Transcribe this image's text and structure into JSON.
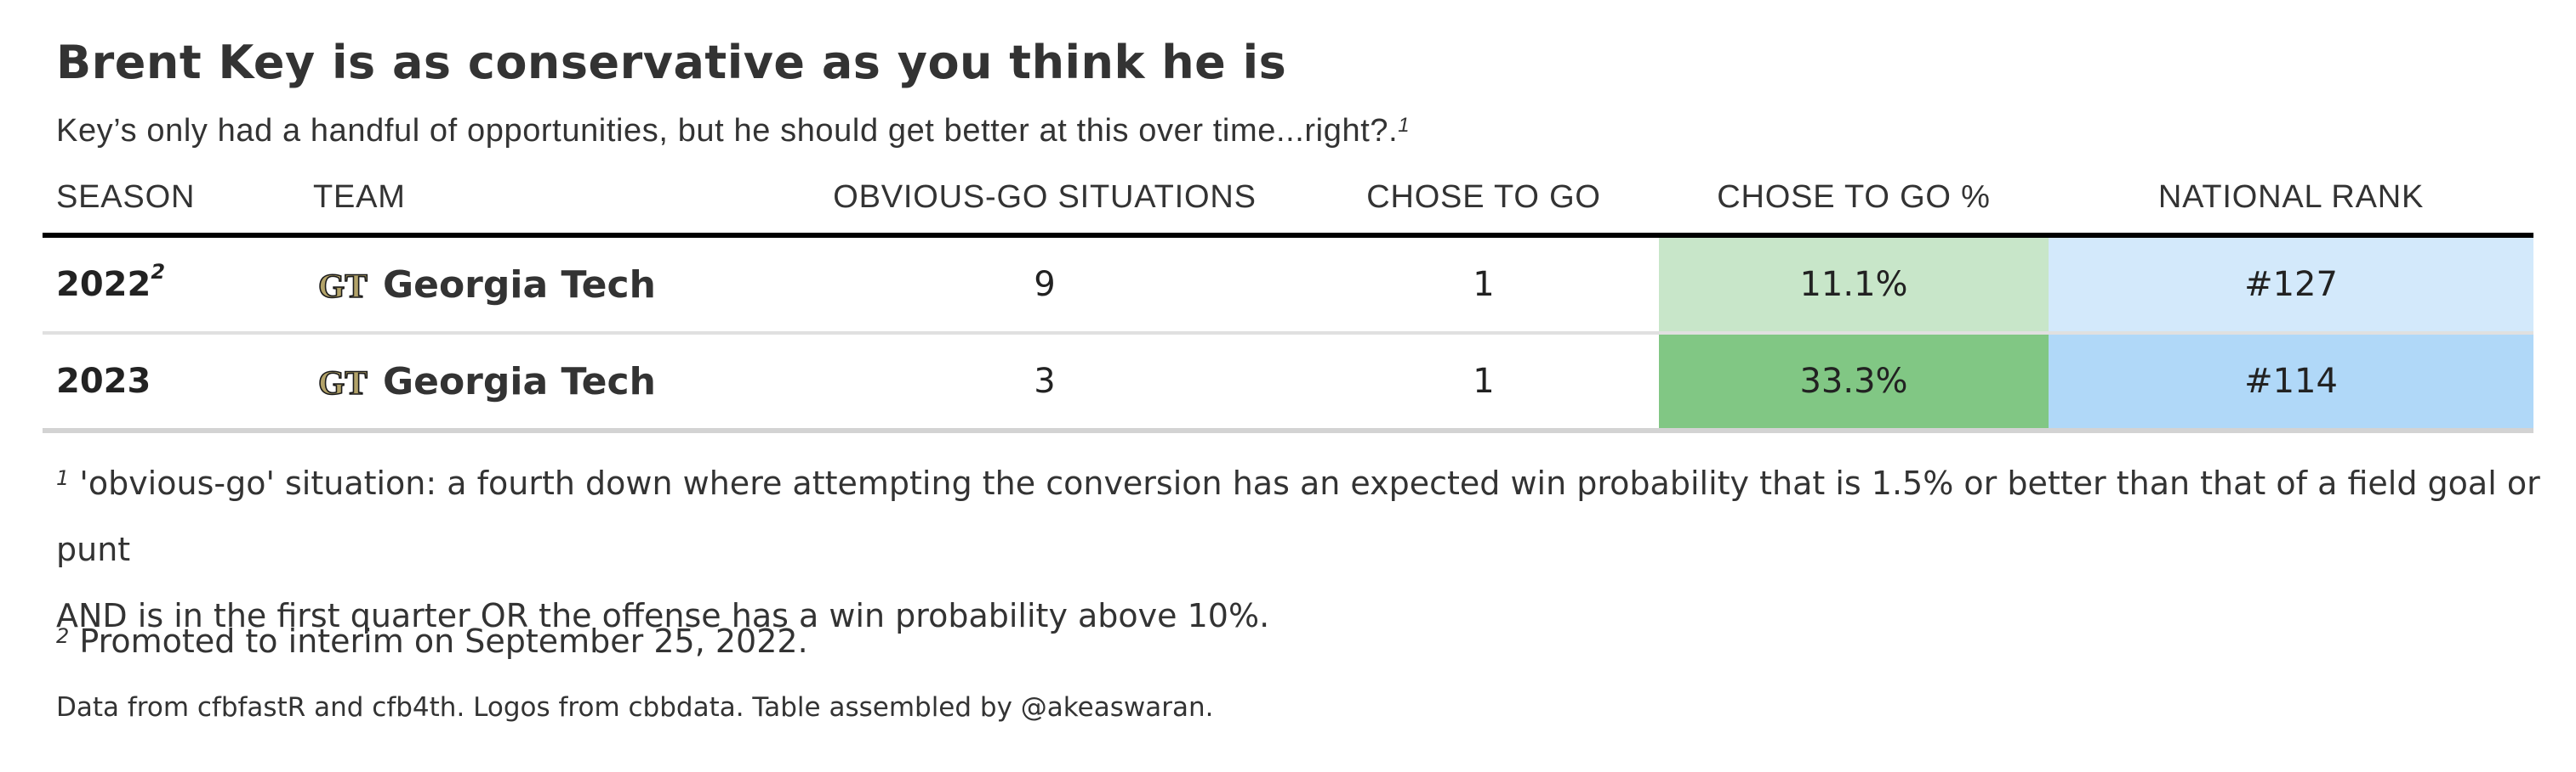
{
  "header": {
    "title": "Brent Key is as conservative as you think he is",
    "subtitle": "Key’s only had a handful of opportunities, but he should get better at this over time...right?.",
    "subtitle_note": "1"
  },
  "columns": {
    "season": "SEASON",
    "team": "TEAM",
    "obvious": "OBVIOUS-GO SITUATIONS",
    "chose": "CHOSE TO GO",
    "pct": "CHOSE TO GO %",
    "rank": "NATIONAL RANK"
  },
  "rows": [
    {
      "season": "2022",
      "season_note": "2",
      "logo": "gt-logo-icon",
      "team": "Georgia Tech",
      "obvious": "9",
      "chose": "1",
      "pct": "11.1%",
      "rank": "#127",
      "pct_color": "#c8e6c9",
      "rank_color": "#d3e9fb"
    },
    {
      "season": "2023",
      "season_note": "",
      "logo": "gt-logo-icon",
      "team": "Georgia Tech",
      "obvious": "3",
      "chose": "1",
      "pct": "33.3%",
      "rank": "#114",
      "pct_color": "#81c784",
      "rank_color": "#b0d8f8"
    }
  ],
  "footnotes": {
    "note1_marker": "1",
    "note1_line1": "'obvious-go' situation: a fourth down where attempting the conversion has an expected win probability that is 1.5% or better than that of a field goal or punt",
    "note1_line2": "AND is in the first quarter OR the offense has a win probability above 10%.",
    "note2_marker": "2",
    "note2": "Promoted to interim on September 25, 2022."
  },
  "source": "Data from cfbfastR and cfb4th. Logos from cbbdata. Table assembled by @akeaswaran.",
  "chart_data": {
    "type": "table",
    "title": "Brent Key is as conservative as you think he is",
    "subtitle": "Key’s only had a handful of opportunities, but he should get better at this over time...right?.",
    "columns": [
      "SEASON",
      "TEAM",
      "OBVIOUS-GO SITUATIONS",
      "CHOSE TO GO",
      "CHOSE TO GO %",
      "NATIONAL RANK"
    ],
    "rows": [
      [
        "2022",
        "Georgia Tech",
        9,
        1,
        "11.1%",
        "#127"
      ],
      [
        "2023",
        "Georgia Tech",
        3,
        1,
        "33.3%",
        "#114"
      ]
    ]
  }
}
